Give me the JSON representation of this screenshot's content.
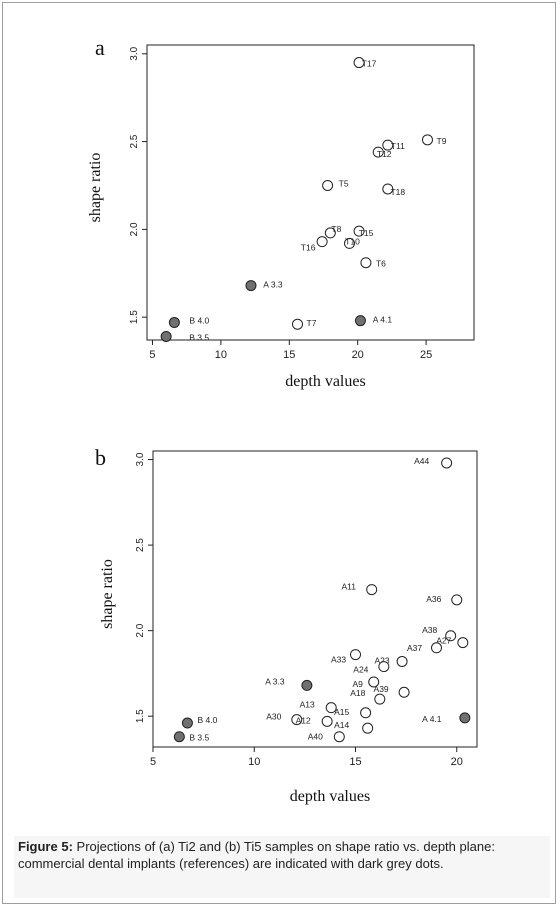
{
  "figure": {
    "caption_label": "Figure 5:",
    "caption_text": "Projections of (a) Ti2 and (b) Ti5 samples on shape ratio vs. depth plane: commercial dental implants (references) are indicated with dark grey dots."
  },
  "colors": {
    "reference_fill": "#707070",
    "sample_fill": "#ffffff",
    "stroke": "#222222"
  },
  "chart_data": [
    {
      "panel_letter": "a",
      "type": "scatter",
      "xlabel": "depth values",
      "ylabel": "shape ratio",
      "xlim": [
        4.6,
        28.5
      ],
      "ylim": [
        1.37,
        3.05
      ],
      "xticks": [
        5,
        10,
        15,
        20,
        25
      ],
      "yticks": [
        1.5,
        2.0,
        2.5,
        3.0
      ],
      "tick_labels_x": [
        "5",
        "10",
        "15",
        "20",
        "25"
      ],
      "tick_labels_y": [
        "1.5",
        "2.0",
        "2.5",
        "3.0"
      ],
      "grid": false,
      "points": [
        {
          "label": "T17",
          "x": 20.1,
          "y": 2.95,
          "reference": false
        },
        {
          "label": "T9",
          "x": 25.1,
          "y": 2.51,
          "reference": false
        },
        {
          "label": "T11",
          "x": 22.2,
          "y": 2.48,
          "reference": false
        },
        {
          "label": "T12",
          "x": 21.5,
          "y": 2.44,
          "reference": false
        },
        {
          "label": "T5",
          "x": 17.8,
          "y": 2.25,
          "reference": false
        },
        {
          "label": "T18",
          "x": 22.2,
          "y": 2.23,
          "reference": false
        },
        {
          "label": "T8",
          "x": 18.0,
          "y": 1.98,
          "reference": false
        },
        {
          "label": "T15",
          "x": 20.1,
          "y": 1.99,
          "reference": false
        },
        {
          "label": "T10",
          "x": 19.4,
          "y": 1.92,
          "reference": false
        },
        {
          "label": "T16",
          "x": 17.4,
          "y": 1.93,
          "reference": false
        },
        {
          "label": "T6",
          "x": 20.6,
          "y": 1.81,
          "reference": false
        },
        {
          "label": "T7",
          "x": 15.6,
          "y": 1.46,
          "reference": false
        },
        {
          "label": "A 3.3",
          "x": 12.2,
          "y": 1.68,
          "reference": true
        },
        {
          "label": "A 4.1",
          "x": 20.2,
          "y": 1.48,
          "reference": true
        },
        {
          "label": "B 4.0",
          "x": 6.6,
          "y": 1.47,
          "reference": true
        },
        {
          "label": "B 3.5",
          "x": 6.0,
          "y": 1.39,
          "reference": true
        }
      ]
    },
    {
      "panel_letter": "b",
      "type": "scatter",
      "xlabel": "depth values",
      "ylabel": "shape ratio",
      "xlim": [
        5.0,
        21.0
      ],
      "ylim": [
        1.32,
        3.05
      ],
      "xticks": [
        5,
        10,
        15,
        20
      ],
      "yticks": [
        1.5,
        2.0,
        2.5,
        3.0
      ],
      "tick_labels_x": [
        "5",
        "10",
        "15",
        "20"
      ],
      "tick_labels_y": [
        "1.5",
        "2.0",
        "2.5",
        "3.0"
      ],
      "grid": false,
      "points": [
        {
          "label": "A44",
          "x": 19.5,
          "y": 2.98,
          "reference": false
        },
        {
          "label": "A11",
          "x": 15.8,
          "y": 2.24,
          "reference": false
        },
        {
          "label": "A36",
          "x": 20.0,
          "y": 2.18,
          "reference": false
        },
        {
          "label": "A38",
          "x": 19.7,
          "y": 1.97,
          "reference": false
        },
        {
          "label": "A27",
          "x": 20.3,
          "y": 1.93,
          "reference": false
        },
        {
          "label": "A37",
          "x": 19.0,
          "y": 1.9,
          "reference": false
        },
        {
          "label": "A33",
          "x": 15.0,
          "y": 1.86,
          "reference": false
        },
        {
          "label": "A23",
          "x": 17.3,
          "y": 1.82,
          "reference": false
        },
        {
          "label": "A24",
          "x": 16.4,
          "y": 1.79,
          "reference": false
        },
        {
          "label": "A9",
          "x": 15.9,
          "y": 1.7,
          "reference": false
        },
        {
          "label": "A39",
          "x": 17.4,
          "y": 1.64,
          "reference": false
        },
        {
          "label": "A18",
          "x": 16.2,
          "y": 1.6,
          "reference": false
        },
        {
          "label": "A13",
          "x": 13.8,
          "y": 1.55,
          "reference": false
        },
        {
          "label": "A15",
          "x": 15.5,
          "y": 1.52,
          "reference": false
        },
        {
          "label": "A30",
          "x": 12.1,
          "y": 1.48,
          "reference": false
        },
        {
          "label": "A12",
          "x": 13.6,
          "y": 1.47,
          "reference": false
        },
        {
          "label": "A14",
          "x": 15.6,
          "y": 1.43,
          "reference": false
        },
        {
          "label": "A40",
          "x": 14.2,
          "y": 1.38,
          "reference": false
        },
        {
          "label": "A 3.3",
          "x": 12.6,
          "y": 1.68,
          "reference": true
        },
        {
          "label": "A 4.1",
          "x": 20.4,
          "y": 1.49,
          "reference": true
        },
        {
          "label": "B 4.0",
          "x": 6.7,
          "y": 1.46,
          "reference": true
        },
        {
          "label": "B 3.5",
          "x": 6.3,
          "y": 1.38,
          "reference": true
        }
      ]
    }
  ]
}
